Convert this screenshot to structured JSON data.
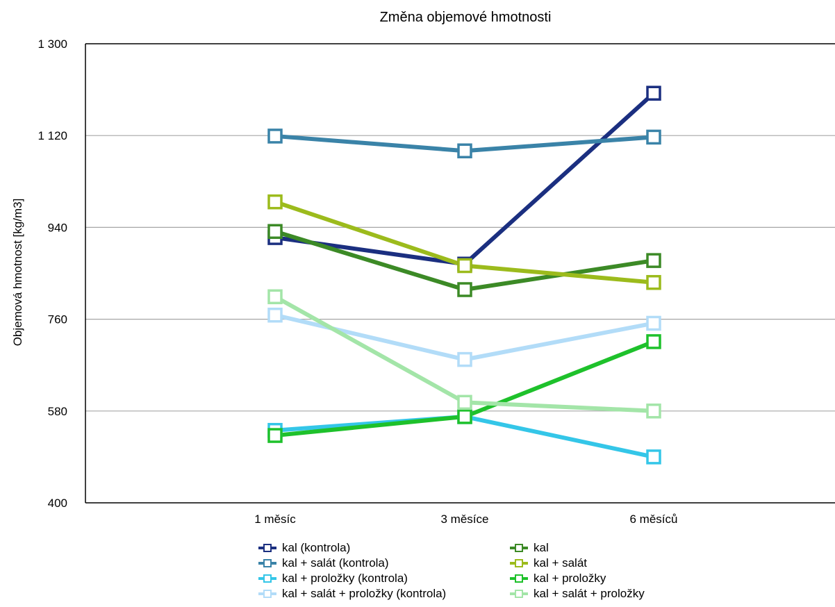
{
  "chart_data": {
    "type": "line",
    "title": "Změna objemové hmotnosti",
    "xlabel": "",
    "ylabel": "Objemová hmotnost [kg/m3]",
    "categories": [
      "1 měsíc",
      "3 měsíce",
      "6 měsíců"
    ],
    "ylim": [
      400,
      1300
    ],
    "yticks": [
      400,
      580,
      760,
      940,
      1120,
      1300
    ],
    "ytick_labels": [
      "400",
      "580",
      "760",
      "940",
      "1 120",
      "1 300"
    ],
    "grid": true,
    "legend_position": "bottom",
    "marker": "open-square",
    "series": [
      {
        "name": "kal (kontrola)",
        "color": "#1b2f80",
        "values": [
          920,
          868,
          1203
        ]
      },
      {
        "name": "kal + salát (kontrola)",
        "color": "#3a83a8",
        "values": [
          1119,
          1090,
          1117
        ]
      },
      {
        "name": "kal + proložky (kontrola)",
        "color": "#34c6e8",
        "values": [
          542,
          569,
          490
        ]
      },
      {
        "name": "kal + salát + proložky (kontrola)",
        "color": "#b2dcf8",
        "values": [
          768,
          681,
          752
        ]
      },
      {
        "name": "kal",
        "color": "#3c8a26",
        "values": [
          932,
          818,
          875
        ]
      },
      {
        "name": "kal + salát",
        "color": "#9cbb1c",
        "values": [
          990,
          865,
          832
        ]
      },
      {
        "name": "kal + proložky",
        "color": "#1ec12b",
        "values": [
          532,
          569,
          716
        ]
      },
      {
        "name": "kal + salát + proložky",
        "color": "#a3e5a8",
        "values": [
          804,
          597,
          580
        ]
      }
    ]
  }
}
